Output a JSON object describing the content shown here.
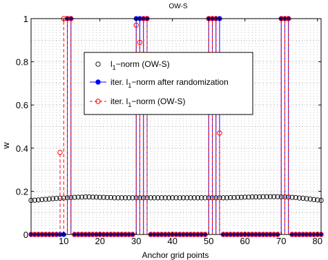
{
  "chart_data": {
    "type": "scatter",
    "title": "OW-S",
    "xlabel": "Anchor grid points",
    "ylabel": "w",
    "xlim": [
      1,
      81
    ],
    "ylim": [
      0,
      1
    ],
    "xticks": [
      10,
      20,
      30,
      40,
      50,
      60,
      70,
      80
    ],
    "xtick_labels": [
      "10",
      "20",
      "30",
      "40",
      "50",
      "60",
      "70",
      "80"
    ],
    "yticks": [
      0,
      0.2,
      0.4,
      0.6,
      0.8,
      1
    ],
    "ytick_labels": [
      "0",
      "0.2",
      "0.4",
      "0.6",
      "0.8",
      "1"
    ],
    "grid": true,
    "legend_position": "center",
    "series": [
      {
        "name": "l1-norm (OW-S)",
        "legend_label": "l",
        "legend_sub": "1",
        "legend_rest": "−norm (OW-S)",
        "style": "open-circle-markers",
        "color": "#000000",
        "x": [
          1,
          2,
          3,
          4,
          5,
          6,
          7,
          8,
          9,
          10,
          11,
          12,
          13,
          14,
          15,
          16,
          17,
          18,
          19,
          20,
          21,
          22,
          23,
          24,
          25,
          26,
          27,
          28,
          29,
          30,
          31,
          32,
          33,
          34,
          35,
          36,
          37,
          38,
          39,
          40,
          41,
          42,
          43,
          44,
          45,
          46,
          47,
          48,
          49,
          50,
          51,
          52,
          53,
          54,
          55,
          56,
          57,
          58,
          59,
          60,
          61,
          62,
          63,
          64,
          65,
          66,
          67,
          68,
          69,
          70,
          71,
          72,
          73,
          74,
          75,
          76,
          77,
          78,
          79,
          80,
          81
        ],
        "y": [
          0.158,
          0.159,
          0.16,
          0.162,
          0.163,
          0.164,
          0.166,
          0.167,
          0.168,
          0.169,
          0.17,
          0.171,
          0.172,
          0.173,
          0.173,
          0.174,
          0.174,
          0.173,
          0.173,
          0.172,
          0.172,
          0.171,
          0.171,
          0.17,
          0.17,
          0.17,
          0.17,
          0.17,
          0.17,
          0.17,
          0.17,
          0.17,
          0.17,
          0.17,
          0.17,
          0.17,
          0.17,
          0.17,
          0.17,
          0.17,
          0.17,
          0.17,
          0.17,
          0.17,
          0.17,
          0.17,
          0.17,
          0.17,
          0.17,
          0.17,
          0.17,
          0.17,
          0.17,
          0.17,
          0.17,
          0.171,
          0.171,
          0.172,
          0.172,
          0.173,
          0.173,
          0.174,
          0.174,
          0.174,
          0.175,
          0.175,
          0.175,
          0.175,
          0.175,
          0.174,
          0.174,
          0.173,
          0.172,
          0.171,
          0.169,
          0.168,
          0.166,
          0.164,
          0.162,
          0.16,
          0.158
        ]
      },
      {
        "name": "iter. l1-norm after randomization",
        "legend_label": "iter. l",
        "legend_sub": "1",
        "legend_rest": "−norm after randomization",
        "style": "solid-stem-filled-markers",
        "color": "#0000ff",
        "x": [
          1,
          2,
          3,
          4,
          5,
          6,
          7,
          8,
          9,
          10,
          11,
          12,
          13,
          14,
          15,
          16,
          17,
          18,
          19,
          20,
          21,
          22,
          23,
          24,
          25,
          26,
          27,
          28,
          29,
          30,
          31,
          32,
          33,
          34,
          35,
          36,
          37,
          38,
          39,
          40,
          41,
          42,
          43,
          44,
          45,
          46,
          47,
          48,
          49,
          50,
          51,
          52,
          53,
          54,
          55,
          56,
          57,
          58,
          59,
          60,
          61,
          62,
          63,
          64,
          65,
          66,
          67,
          68,
          69,
          70,
          71,
          72,
          73,
          74,
          75,
          76,
          77,
          78,
          79,
          80,
          81
        ],
        "y": [
          0,
          0,
          0,
          0,
          0,
          0,
          0,
          0,
          0,
          0,
          1,
          1,
          0,
          0,
          0,
          0,
          0,
          0,
          0,
          0,
          0,
          0,
          0,
          0,
          0,
          0,
          0,
          0,
          0,
          1,
          1,
          1,
          1,
          0,
          0,
          0,
          0,
          0,
          0,
          0,
          0,
          0,
          0,
          0,
          0,
          0,
          0,
          0,
          0,
          1,
          1,
          1,
          1,
          0,
          0,
          0,
          0,
          0,
          0,
          0,
          0,
          0,
          0,
          0,
          0,
          0,
          0,
          0,
          0,
          1,
          1,
          1,
          0,
          0,
          0,
          0,
          0,
          0,
          0,
          0,
          0
        ]
      },
      {
        "name": "iter. l1-norm (OW-S)",
        "legend_label": "iter. l",
        "legend_sub": "1",
        "legend_rest": "−norm (OW-S)",
        "style": "dashed-stem-open-markers",
        "color": "#ff0000",
        "x": [
          1,
          2,
          3,
          4,
          5,
          6,
          7,
          8,
          9,
          10,
          11,
          12,
          13,
          14,
          15,
          16,
          17,
          18,
          19,
          20,
          21,
          22,
          23,
          24,
          25,
          26,
          27,
          28,
          29,
          30,
          31,
          32,
          33,
          34,
          35,
          36,
          37,
          38,
          39,
          40,
          41,
          42,
          43,
          44,
          45,
          46,
          47,
          48,
          49,
          50,
          51,
          52,
          53,
          54,
          55,
          56,
          57,
          58,
          59,
          60,
          61,
          62,
          63,
          64,
          65,
          66,
          67,
          68,
          69,
          70,
          71,
          72,
          73,
          74,
          75,
          76,
          77,
          78,
          79,
          80,
          81
        ],
        "y": [
          0,
          0,
          0,
          0,
          0,
          0,
          0,
          0,
          0.38,
          1,
          1,
          1,
          0,
          0,
          0,
          0,
          0,
          0,
          0,
          0,
          0,
          0,
          0,
          0,
          0,
          0,
          0,
          0,
          0,
          0.97,
          0.89,
          1,
          1,
          0,
          0,
          0,
          0,
          0,
          0,
          0,
          0,
          0,
          0,
          0,
          0,
          0,
          0,
          0,
          0,
          1,
          1,
          1,
          0.47,
          0,
          0,
          0,
          0,
          0,
          0,
          0,
          0,
          0,
          0,
          0,
          0,
          0,
          0,
          0,
          0,
          1,
          1,
          1,
          0,
          0,
          0,
          0,
          0,
          0,
          0,
          0,
          0
        ]
      }
    ]
  }
}
